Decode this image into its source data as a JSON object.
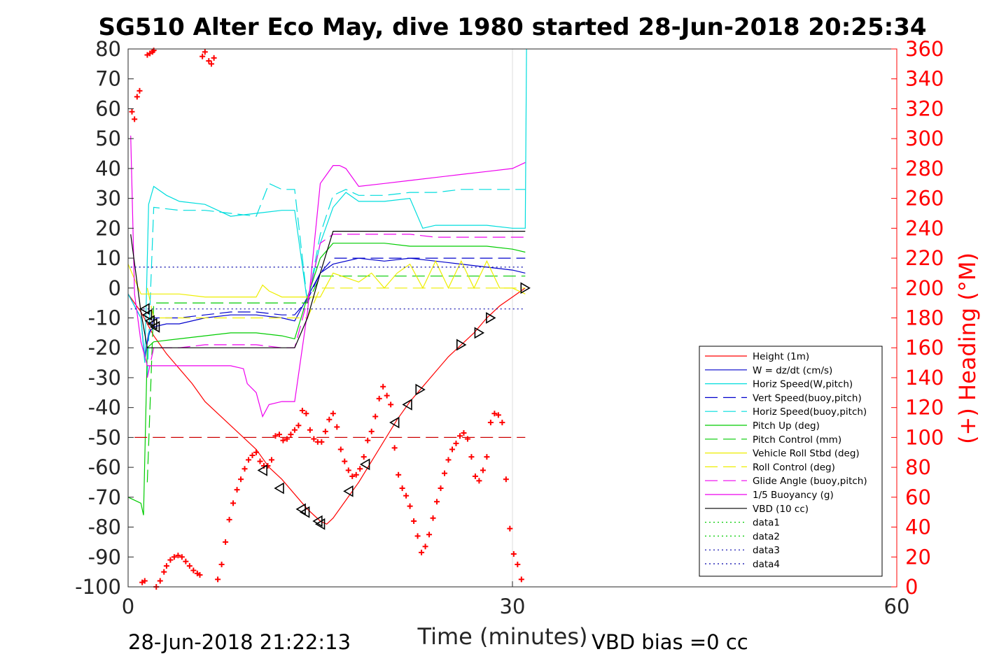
{
  "title": "SG510 Alter Eco May, dive 1980 started 28-Jun-2018 20:25:34",
  "footer": {
    "end_time": "28-Jun-2018 21:22:13",
    "vbd_bias": "VBD bias =0 cc"
  },
  "chart_data": {
    "type": "line",
    "title": "SG510 Alter Eco May, dive 1980 started 28-Jun-2018 20:25:34",
    "xlabel": "Time (minutes)",
    "ylabel": "",
    "ylabel_right": "(+) Heading (°M)",
    "xlim": [
      0,
      60
    ],
    "ylim": [
      -100,
      80
    ],
    "ylim_right": [
      0,
      360
    ],
    "xticks": [
      0,
      30,
      60
    ],
    "yticks": [
      -100,
      -90,
      -80,
      -70,
      -60,
      -50,
      -40,
      -30,
      -20,
      -10,
      0,
      10,
      20,
      30,
      40,
      50,
      60,
      70,
      80
    ],
    "yticks_right": [
      0,
      20,
      40,
      60,
      80,
      100,
      120,
      140,
      160,
      180,
      200,
      220,
      240,
      260,
      280,
      300,
      320,
      340,
      360
    ],
    "grid": "vertical line at x=30 only",
    "legend_position": "lower-right",
    "series": [
      {
        "name": "Height (1m)",
        "color": "#ff0000",
        "style": "solid",
        "x": [
          0,
          1,
          2,
          3,
          5,
          6,
          8,
          10,
          11,
          12,
          14,
          14.5,
          15,
          15.5,
          16,
          17,
          18,
          19,
          20,
          21,
          22,
          23,
          24,
          25,
          26,
          27,
          28,
          29,
          30,
          31
        ],
        "y": [
          -2,
          -8,
          -16,
          -22,
          -32,
          -38,
          -46,
          -54,
          -60,
          -64,
          -74,
          -76,
          -78,
          -79,
          -77,
          -71,
          -65,
          -58,
          -51,
          -44,
          -38,
          -33,
          -28,
          -23,
          -19,
          -15,
          -10,
          -6,
          -3,
          0
        ]
      },
      {
        "name": "W = dz/dt (cm/s)",
        "color": "#0000cc",
        "style": "solid",
        "x": [
          0,
          1,
          1.3,
          1.6,
          2,
          3,
          4,
          6,
          8,
          10,
          12,
          13,
          14,
          15,
          16,
          18,
          20,
          22,
          24,
          26,
          28,
          30,
          31
        ],
        "y": [
          -2,
          -10,
          -24,
          -15,
          -13,
          -12,
          -12,
          -10,
          -9,
          -9,
          -10,
          -11,
          -3,
          5,
          8,
          10,
          9,
          10,
          9,
          8,
          7,
          6,
          5
        ]
      },
      {
        "name": "Horiz Speed(W,pitch)",
        "color": "#00dddd",
        "style": "solid",
        "x": [
          0,
          1,
          1.3,
          1.6,
          2,
          3,
          4,
          6,
          8,
          10,
          12,
          13,
          14,
          15,
          16,
          17,
          18,
          20,
          22,
          23,
          24,
          26,
          28,
          30,
          31,
          31.1
        ],
        "y": [
          -2,
          -10,
          -25,
          28,
          34,
          31,
          29,
          28,
          24,
          25,
          26,
          26,
          -5,
          15,
          27,
          32,
          29,
          29,
          30,
          20,
          21,
          21,
          21,
          20,
          20,
          80
        ]
      },
      {
        "name": "Vert Speed(buoy,pitch)",
        "color": "#0000cc",
        "style": "dash",
        "x": [
          1.5,
          2,
          4,
          6,
          8,
          10,
          12,
          13,
          14,
          15,
          16,
          18,
          20,
          22,
          24,
          26,
          28,
          30,
          31
        ],
        "y": [
          -18,
          -10,
          -10,
          -9,
          -8,
          -8,
          -9,
          -9,
          -4,
          5,
          10,
          10,
          10,
          10,
          10,
          10,
          10,
          10,
          10
        ]
      },
      {
        "name": "Horiz Speed(buoy,pitch)",
        "color": "#00dddd",
        "style": "dash",
        "x": [
          1.5,
          2,
          4,
          6,
          8,
          10,
          11,
          12,
          13,
          14,
          15,
          16,
          17,
          18,
          20,
          22,
          24,
          26,
          28,
          30,
          31
        ],
        "y": [
          -30,
          27,
          26,
          26,
          25,
          24,
          35,
          33,
          33,
          -5,
          18,
          31,
          33,
          31,
          31,
          32,
          32,
          33,
          33,
          33,
          33
        ]
      },
      {
        "name": "Pitch Up (deg)",
        "color": "#00cc00",
        "style": "solid",
        "x": [
          0,
          1,
          1.2,
          1.5,
          2,
          4,
          6,
          8,
          10,
          12,
          13,
          14,
          15,
          16,
          18,
          20,
          22,
          24,
          26,
          28,
          30,
          31
        ],
        "y": [
          -70,
          -72,
          -76,
          -20,
          -18,
          -17,
          -16,
          -15,
          -15,
          -16,
          -17,
          -3,
          10,
          15,
          15,
          15,
          14,
          14,
          14,
          14,
          13,
          12
        ]
      },
      {
        "name": "Pitch Control (mm)",
        "color": "#00cc00",
        "style": "dash",
        "x": [
          1.5,
          2,
          4,
          6,
          8,
          10,
          12,
          13,
          14,
          15,
          16,
          20,
          25,
          31
        ],
        "y": [
          -65,
          -5,
          -5,
          -5,
          -5,
          -5,
          -5,
          -5,
          -5,
          4,
          4,
          4,
          4,
          4
        ]
      },
      {
        "name": "Vehicle Roll Stbd (deg)",
        "color": "#eeee00",
        "style": "solid",
        "x": [
          0,
          1,
          2,
          4,
          6,
          8,
          10,
          10.5,
          11,
          12,
          13,
          14,
          15,
          16,
          18,
          19,
          20,
          21,
          22,
          23,
          24,
          25,
          26,
          27,
          28,
          29,
          30,
          31
        ],
        "y": [
          8,
          -2,
          -2,
          -2,
          -3,
          -3,
          -3,
          1,
          -1,
          -3,
          -3,
          -3,
          -3,
          5,
          2,
          5,
          0,
          5,
          8,
          0,
          9,
          0,
          9,
          0,
          9,
          0,
          0,
          -2
        ]
      },
      {
        "name": "Roll Control (deg)",
        "color": "#eeee00",
        "style": "dash",
        "x": [
          1.5,
          2,
          14,
          15,
          31
        ],
        "y": [
          0,
          -10,
          -10,
          0,
          0
        ]
      },
      {
        "name": "Glide Angle (buoy,pitch)",
        "color": "#ee00ee",
        "style": "dash",
        "x": [
          1.5,
          2,
          4,
          6,
          8,
          10,
          12,
          13,
          14,
          15,
          16,
          18,
          20,
          22,
          24,
          26,
          28,
          30,
          31
        ],
        "y": [
          -30,
          -20,
          -20,
          -19,
          -19,
          -19,
          -20,
          -20,
          -4,
          15,
          18,
          18,
          18,
          18,
          17,
          17,
          17,
          17,
          17
        ]
      },
      {
        "name": "1/5 Buoyancy (g)",
        "color": "#ee00ee",
        "style": "solid",
        "x": [
          0.2,
          0.5,
          1,
          1.5,
          2,
          3,
          5,
          8,
          9,
          9.3,
          10,
          10.5,
          11,
          12,
          13,
          14,
          15,
          16,
          16.5,
          17,
          18,
          20,
          22,
          24,
          26,
          28,
          30,
          31
        ],
        "y": [
          51,
          -2,
          -18,
          -26,
          -26,
          -26,
          -26,
          -26,
          -27,
          -32,
          -35,
          -43,
          -39,
          -38,
          -38,
          -8,
          35,
          41,
          41,
          40,
          34,
          35,
          36,
          37,
          38,
          39,
          40,
          42
        ]
      },
      {
        "name": "VBD (10 cc)",
        "color": "#000000",
        "style": "solid",
        "x": [
          0.2,
          1,
          1.5,
          2,
          4,
          8,
          13,
          14,
          15,
          16,
          20,
          25,
          31
        ],
        "y": [
          18,
          -8,
          -20,
          -20,
          -20,
          -20,
          -20,
          -10,
          5,
          19,
          19,
          19,
          19
        ]
      },
      {
        "name": "data1",
        "color": "#00cc00",
        "style": "dot",
        "x": [],
        "y": []
      },
      {
        "name": "data2",
        "color": "#00cc00",
        "style": "dot",
        "x": [],
        "y": []
      },
      {
        "name": "data3",
        "color": "#0000aa",
        "style": "dot",
        "x": [
          0.2,
          31
        ],
        "y": [
          7,
          7
        ]
      },
      {
        "name": "data4",
        "color": "#0000aa",
        "style": "dot",
        "x": [
          0.2,
          31
        ],
        "y": [
          -7,
          -7
        ]
      },
      {
        "name": "",
        "color": "#cc0000",
        "style": "dash",
        "x": [
          0.5,
          31
        ],
        "y": [
          -50,
          -50
        ]
      }
    ],
    "heading_points": {
      "color": "#ff0000",
      "marker": "+",
      "x": [
        0.3,
        0.5,
        0.7,
        0.9,
        1.1,
        1.3,
        1.5,
        1.7,
        1.9,
        2.0,
        2.2,
        2.5,
        2.8,
        3.0,
        3.3,
        3.6,
        3.9,
        4.2,
        4.5,
        4.8,
        5.1,
        5.4,
        5.6,
        5.8,
        6.0,
        6.3,
        6.5,
        6.7,
        7.0,
        7.3,
        7.6,
        7.9,
        8.2,
        8.5,
        8.8,
        9.1,
        9.4,
        9.7,
        10.0,
        10.3,
        10.6,
        10.9,
        11.2,
        11.5,
        11.8,
        12.1,
        12.4,
        12.7,
        13.0,
        13.3,
        13.6,
        13.9,
        14.2,
        14.5,
        14.8,
        15.1,
        15.4,
        15.7,
        16.0,
        16.3,
        16.6,
        16.9,
        17.2,
        17.5,
        17.8,
        18.1,
        18.4,
        18.7,
        19.0,
        19.3,
        19.6,
        19.9,
        20.2,
        20.5,
        20.8,
        21.1,
        21.4,
        21.7,
        22.0,
        22.3,
        22.6,
        22.9,
        23.2,
        23.5,
        23.8,
        24.1,
        24.4,
        24.7,
        25.0,
        25.3,
        25.6,
        25.9,
        26.2,
        26.5,
        26.8,
        27.1,
        27.4,
        27.7,
        28.0,
        28.3,
        28.6,
        28.9,
        29.2,
        29.5,
        29.8,
        30.1,
        30.4,
        30.7
      ],
      "y": [
        318,
        313,
        328,
        332,
        3,
        4,
        356,
        357,
        358,
        359,
        0,
        4,
        10,
        14,
        18,
        20,
        21,
        20,
        17,
        14,
        11,
        9,
        8,
        355,
        358,
        352,
        350,
        354,
        5,
        15,
        30,
        45,
        56,
        65,
        72,
        79,
        85,
        88,
        90,
        84,
        81,
        81,
        85,
        101,
        102,
        98,
        99,
        102,
        105,
        108,
        118,
        116,
        105,
        99,
        97,
        97,
        104,
        112,
        116,
        107,
        92,
        84,
        78,
        74,
        75,
        79,
        87,
        98,
        104,
        114,
        126,
        134,
        128,
        122,
        93,
        75,
        66,
        61,
        54,
        44,
        34,
        23,
        27,
        35,
        46,
        57,
        66,
        76,
        85,
        92,
        96,
        101,
        103,
        99,
        87,
        74,
        71,
        78,
        87,
        110,
        116,
        115,
        110,
        72,
        39,
        22,
        15,
        5
      ]
    },
    "triangle_points": {
      "color": "#000000",
      "x": [
        1.3,
        1.5,
        1.7,
        1.9,
        2.1,
        10.5,
        11.8,
        13.5,
        13.8,
        14.8,
        15.0,
        17.2,
        18.5,
        20.8,
        21.8,
        22.8,
        26.0,
        27.4,
        28.3,
        31.0
      ],
      "y": [
        -7,
        -9,
        -11,
        -12,
        -13,
        -61,
        -67,
        -74,
        -75,
        -78,
        -79,
        -68,
        -59,
        -45,
        -39,
        -34,
        -19,
        -15,
        -10,
        0
      ]
    }
  }
}
